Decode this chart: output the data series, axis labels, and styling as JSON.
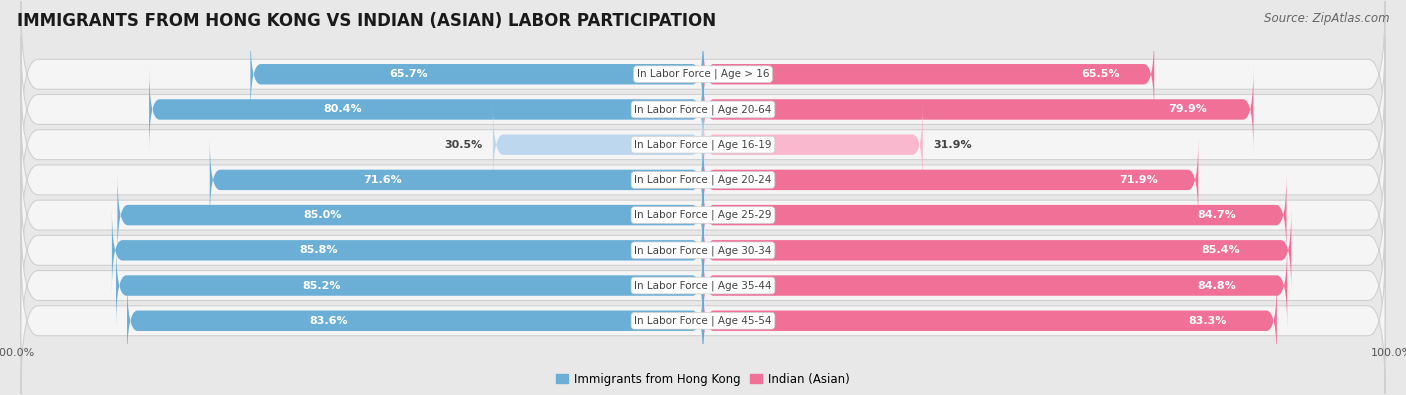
{
  "title": "IMMIGRANTS FROM HONG KONG VS INDIAN (ASIAN) LABOR PARTICIPATION",
  "source": "Source: ZipAtlas.com",
  "categories": [
    "In Labor Force | Age > 16",
    "In Labor Force | Age 20-64",
    "In Labor Force | Age 16-19",
    "In Labor Force | Age 20-24",
    "In Labor Force | Age 25-29",
    "In Labor Force | Age 30-34",
    "In Labor Force | Age 35-44",
    "In Labor Force | Age 45-54"
  ],
  "hk_values": [
    65.7,
    80.4,
    30.5,
    71.6,
    85.0,
    85.8,
    85.2,
    83.6
  ],
  "indian_values": [
    65.5,
    79.9,
    31.9,
    71.9,
    84.7,
    85.4,
    84.8,
    83.3
  ],
  "hk_color": "#6BAED6",
  "hk_color_light": "#BDD7EE",
  "indian_color": "#F07098",
  "indian_color_light": "#F9B8CE",
  "bg_color": "#e8e8e8",
  "row_bg": "#f5f5f5",
  "row_border": "#d0d0d0",
  "label_color_dark": "#444444",
  "label_color_white": "#ffffff",
  "max_value": 100.0,
  "legend_hk": "Immigrants from Hong Kong",
  "legend_indian": "Indian (Asian)",
  "title_fontsize": 12,
  "source_fontsize": 8.5,
  "bar_label_fontsize": 8,
  "category_label_fontsize": 7.5,
  "axis_label_fontsize": 8,
  "threshold_color": 50
}
